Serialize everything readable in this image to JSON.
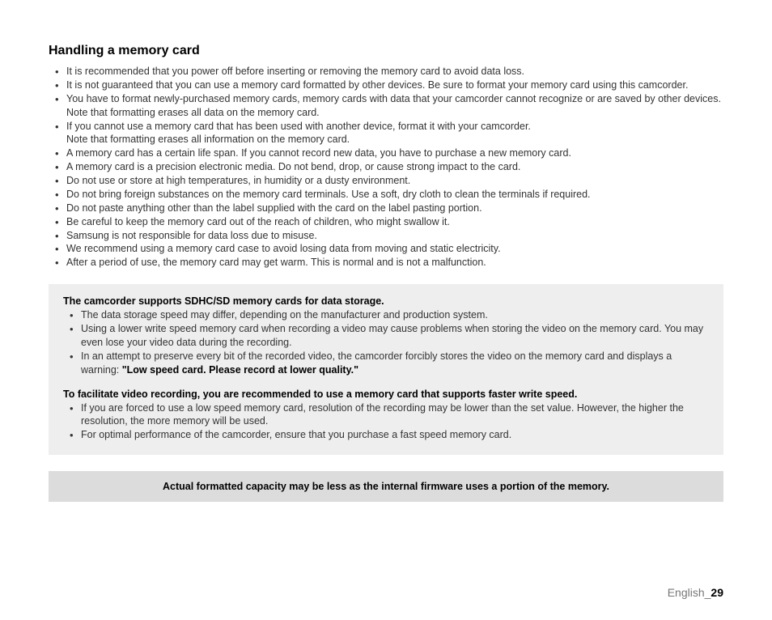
{
  "heading": "Handling a memory card",
  "main_list": [
    "It is recommended that you power off before inserting or removing the memory card to avoid data loss.",
    "It is not guaranteed that you can use a memory card formatted by other devices. Be sure to format your memory card using this camcorder.",
    "You have to format newly-purchased memory cards, memory cards with data that your camcorder cannot recognize or are saved by other devices. Note that formatting erases all data on the memory card.",
    "If you cannot use a memory card that has been used with another device, format it with your camcorder.\nNote that formatting erases all information on the memory card.",
    "A memory card has a certain life span. If you cannot record new data, you have to purchase a new memory card.",
    "A memory card is a precision electronic media. Do not bend, drop, or cause strong impact to the card.",
    "Do not use or store at high temperatures, in humidity or a dusty environment.",
    "Do not bring foreign substances on the memory card terminals. Use a soft, dry cloth to clean the terminals if required.",
    "Do not paste anything other than the label supplied with the card on the label pasting portion.",
    "Be careful to keep the memory card out of the reach of children, who might swallow it.",
    "Samsung is not responsible for data loss due to misuse.",
    "We recommend using a memory card case to avoid losing data from moving and static electricity.",
    "After a period of use, the memory card may get warm. This is normal and is not a malfunction."
  ],
  "box": {
    "heading1": "The camcorder supports SDHC/SD memory cards for data storage.",
    "list1": [
      "The data storage speed may differ, depending on the manufacturer and production system.",
      "Using a lower write speed memory card when recording a video may cause problems when storing the video on the memory card. You may even lose your video data during the recording."
    ],
    "list1_last_prefix": "In an attempt to preserve every bit of the recorded video, the camcorder forcibly stores the video on the memory card and displays a warning: ",
    "list1_last_bold": "\"Low speed card. Please record at lower quality.\"",
    "heading2": "To facilitate video recording, you are recommended to use a memory card that supports faster write speed.",
    "list2": [
      "If you are forced to use a low speed memory card, resolution of the recording may be lower than the set value. However, the higher the resolution, the more memory will be used.",
      "For optimal performance of the camcorder, ensure that you purchase a fast speed memory card."
    ]
  },
  "bar": "Actual formatted capacity may be less as the internal firmware uses a portion of the memory.",
  "footer_lang": "English",
  "footer_sep": "_",
  "footer_page": "29",
  "colors": {
    "page_bg": "#ffffff",
    "box_bg": "#eeeeee",
    "bar_bg": "#dcdcdc",
    "text": "#333333",
    "footer_lang": "#777777"
  }
}
